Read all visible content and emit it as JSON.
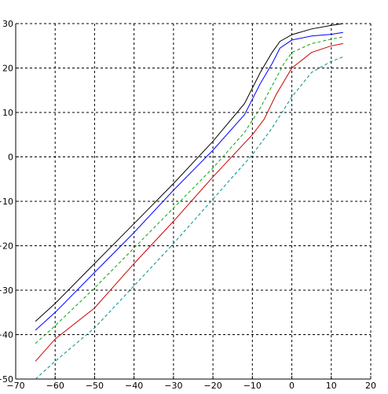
{
  "chart_data": {
    "type": "line",
    "title": "",
    "xlabel": "",
    "ylabel": "",
    "xlim": [
      -70,
      20
    ],
    "ylim": [
      -50,
      30
    ],
    "grid": true,
    "xticks": [
      -70,
      -60,
      -50,
      -40,
      -30,
      -20,
      -10,
      0,
      10,
      20
    ],
    "yticks": [
      -50,
      -40,
      -30,
      -20,
      -10,
      0,
      10,
      20,
      30
    ],
    "series": [
      {
        "color": "#000000",
        "dash": "solid",
        "x": [
          -65,
          -60,
          -50,
          -40,
          -30,
          -20,
          -12,
          -8,
          -5,
          -3,
          0,
          5,
          10,
          13
        ],
        "y": [
          -37,
          -33,
          -24,
          -15,
          -6,
          3.5,
          12,
          19,
          23.5,
          26,
          27.5,
          28.8,
          29.6,
          30
        ]
      },
      {
        "color": "#0000ff",
        "dash": "solid",
        "x": [
          -65,
          -60,
          -50,
          -40,
          -30,
          -20,
          -12,
          -8,
          -5,
          -3,
          0,
          5,
          10,
          13
        ],
        "y": [
          -39,
          -35,
          -26,
          -17,
          -7.5,
          1.5,
          9.5,
          16.5,
          21,
          24.5,
          26.3,
          27.2,
          27.6,
          28
        ]
      },
      {
        "color": "#00aa00",
        "dash": "dashed",
        "x": [
          -65,
          -60,
          -50,
          -40,
          -30,
          -20,
          -12,
          -8,
          -5,
          -2,
          0,
          5,
          10,
          13
        ],
        "y": [
          -42,
          -38,
          -29.5,
          -20.5,
          -11.5,
          -2.5,
          5.5,
          11,
          16,
          21,
          23.5,
          25.5,
          26.5,
          27
        ]
      },
      {
        "color": "#cc0000",
        "dash": "solid",
        "x": [
          -65,
          -60,
          -50,
          -40,
          -30,
          -20,
          -10,
          -7,
          -4,
          0,
          5,
          10,
          13
        ],
        "y": [
          -46,
          -41,
          -34,
          -24,
          -14.5,
          -4.5,
          5,
          8.5,
          14,
          20,
          23.5,
          25,
          25.5
        ]
      },
      {
        "color": "#008b8b",
        "dash": "dashed",
        "x": [
          -65,
          -60,
          -50,
          -40,
          -30,
          -20,
          -10,
          -5,
          0,
          5,
          10,
          13
        ],
        "y": [
          -50,
          -46,
          -38.5,
          -29,
          -19.5,
          -9.5,
          0.5,
          6.5,
          13.5,
          19,
          21.5,
          22.5
        ]
      }
    ]
  }
}
